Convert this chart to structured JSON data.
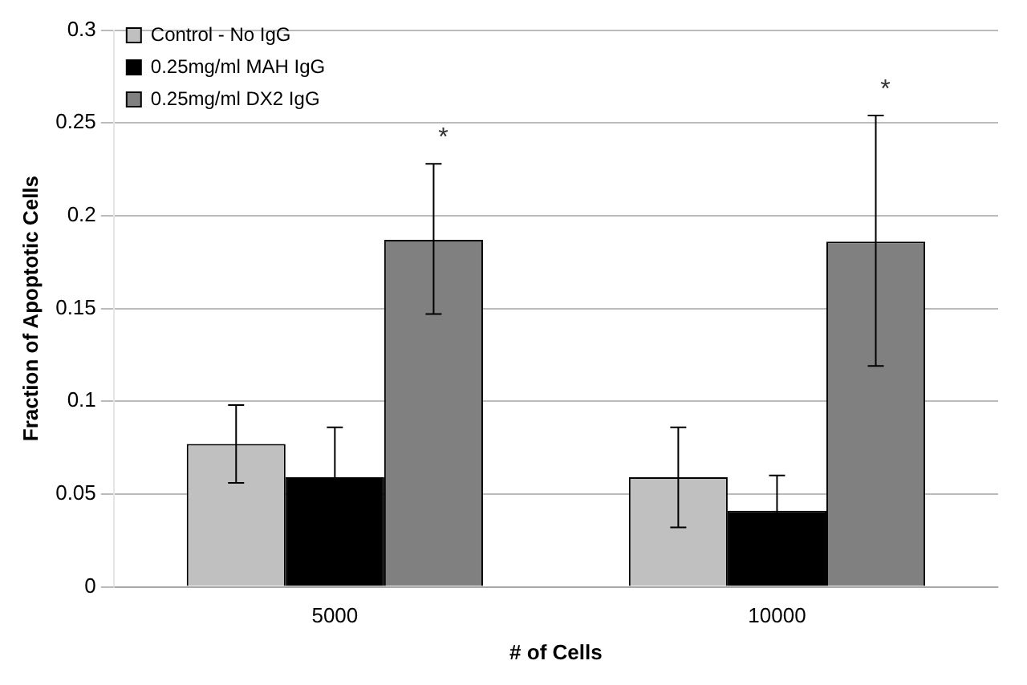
{
  "chart_data": {
    "type": "bar",
    "xlabel": "# of Cells",
    "ylabel": "Fraction of Apoptotic Cells",
    "categories": [
      "5000",
      "10000"
    ],
    "series": [
      {
        "name": "Control - No IgG",
        "color": "#c0c0c0",
        "values": [
          0.077,
          0.059
        ],
        "errors": [
          0.021,
          0.027
        ]
      },
      {
        "name": "0.25mg/ml MAH IgG",
        "color": "#000000",
        "values": [
          0.059,
          0.041
        ],
        "errors": [
          0.027,
          0.019
        ]
      },
      {
        "name": "0.25mg/ml DX2 IgG",
        "color": "#808080",
        "values": [
          0.187,
          0.186
        ],
        "errors": [
          [
            0.147,
            0.228
          ],
          [
            0.119,
            0.254
          ]
        ]
      }
    ],
    "ylim": [
      0,
      0.3
    ],
    "yticks": [
      0,
      0.05,
      0.1,
      0.15,
      0.2,
      0.25,
      0.3
    ],
    "grid": "y",
    "legend": "top left",
    "annotations": [
      "*",
      "*"
    ]
  }
}
